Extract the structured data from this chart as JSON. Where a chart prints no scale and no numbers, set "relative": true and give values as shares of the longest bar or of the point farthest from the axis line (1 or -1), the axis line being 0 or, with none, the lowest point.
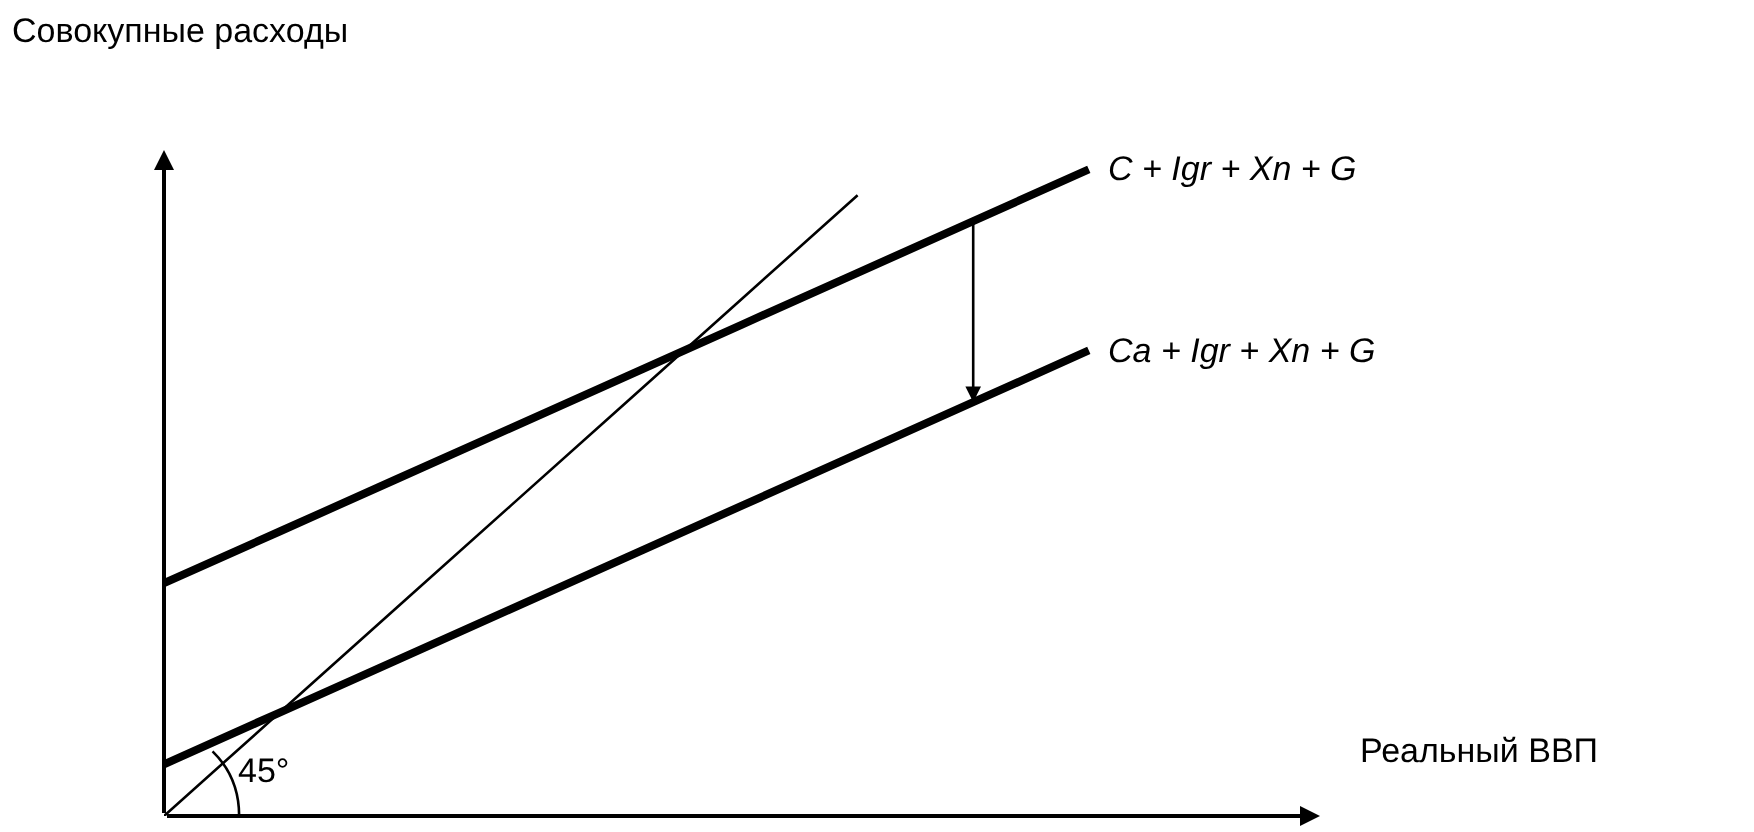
{
  "chart_data": {
    "type": "line",
    "relative": true,
    "ylabel": "Совокупные расходы",
    "annotations": [
      "45°",
      "Реальный ВВП"
    ],
    "legend": false,
    "grid": false,
    "marker": "none",
    "line_style": "solid",
    "categories": [
      null,
      null,
      null,
      null,
      null,
      null,
      null,
      null,
      null
    ],
    "series": [
      {
        "color": "#000000",
        "values": [
          0,
          0.16,
          0.32,
          0.48,
          0.64,
          0.8,
          0.96,
          null,
          null
        ]
      },
      {
        "name": "C + Igr + Xn + G",
        "color": "#000000",
        "values": [
          0.36,
          0.44,
          0.52,
          0.6,
          0.68,
          0.76,
          0.84,
          0.92,
          1.0
        ]
      },
      {
        "name": "Ca + Igr + Xn + G",
        "color": "#000000",
        "values": [
          0.08,
          0.16,
          0.24,
          0.32,
          0.4,
          0.48,
          0.56,
          0.64,
          0.72
        ]
      }
    ]
  }
}
